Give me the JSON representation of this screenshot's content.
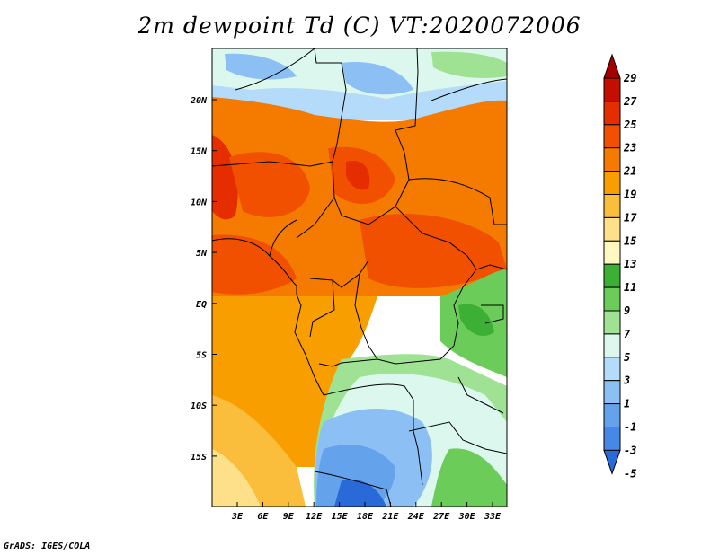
{
  "title": "2m dewpoint Td (C) VT:2020072006",
  "credit": "GrADS: IGES/COLA",
  "map": {
    "lat_labels": [
      "20N",
      "15N",
      "10N",
      "5N",
      "EQ",
      "5S",
      "10S",
      "15S"
    ],
    "lon_labels": [
      "3E",
      "6E",
      "9E",
      "12E",
      "15E",
      "18E",
      "21E",
      "24E",
      "27E",
      "30E",
      "33E"
    ]
  },
  "colorbar": {
    "labels": [
      "29",
      "27",
      "25",
      "23",
      "21",
      "19",
      "17",
      "15",
      "13",
      "11",
      "9",
      "7",
      "5",
      "3",
      "1",
      "-1",
      "-3",
      "-5"
    ],
    "colors": [
      "#a50000",
      "#c40f00",
      "#e52d00",
      "#f05000",
      "#f57a00",
      "#f89e00",
      "#fbbd3c",
      "#fde089",
      "#fff8c0",
      "#3cb034",
      "#6ccc5a",
      "#a0e294",
      "#dcf8ee",
      "#b4dcfa",
      "#8cc0f5",
      "#64a2ec",
      "#4688e6",
      "#2a6ad8"
    ]
  }
}
